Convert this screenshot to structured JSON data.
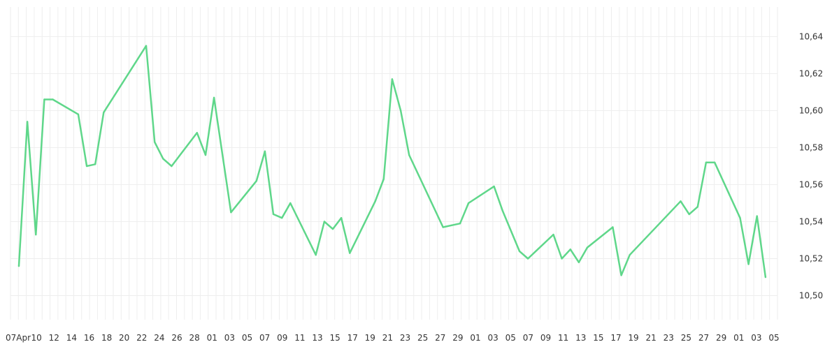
{
  "chart_data": {
    "type": "line",
    "title": "",
    "xlabel": "",
    "ylabel": "",
    "line_color": "#5fd78a",
    "grid_color": "#eeeeee",
    "grid": true,
    "ylim": [
      10.487,
      10.656
    ],
    "y_ticks": [
      "10,50",
      "10,52",
      "10,54",
      "10,56",
      "10,58",
      "10,60",
      "10,62",
      "10,64"
    ],
    "x_tick_labels": [
      "07Apr",
      "10",
      "12",
      "14",
      "16",
      "18",
      "20",
      "22",
      "24",
      "26",
      "28",
      "01",
      "03",
      "05",
      "07",
      "09",
      "11",
      "13",
      "15",
      "17",
      "19",
      "21",
      "23",
      "25",
      "27",
      "29",
      "01",
      "03",
      "05",
      "07",
      "09",
      "11",
      "13",
      "15",
      "17",
      "19",
      "21",
      "23",
      "25",
      "27",
      "29",
      "01",
      "03",
      "05"
    ],
    "x": [
      "2020-04-07",
      "2020-04-08",
      "2020-04-09",
      "2020-04-10",
      "2020-04-11",
      "2020-04-14",
      "2020-04-15",
      "2020-04-16",
      "2020-04-17",
      "2020-04-22",
      "2020-04-23",
      "2020-04-24",
      "2020-04-25",
      "2020-04-28",
      "2020-04-29",
      "2020-04-30",
      "2020-05-02",
      "2020-05-05",
      "2020-05-06",
      "2020-05-07",
      "2020-05-08",
      "2020-05-09",
      "2020-05-12",
      "2020-05-13",
      "2020-05-14",
      "2020-05-15",
      "2020-05-16",
      "2020-05-19",
      "2020-05-20",
      "2020-05-21",
      "2020-05-22",
      "2020-05-23",
      "2020-05-27",
      "2020-05-28",
      "2020-05-29",
      "2020-05-30",
      "2020-06-02",
      "2020-06-03",
      "2020-06-05",
      "2020-06-06",
      "2020-06-09",
      "2020-06-10",
      "2020-06-11",
      "2020-06-12",
      "2020-06-13",
      "2020-06-16",
      "2020-06-17",
      "2020-06-18",
      "2020-06-24",
      "2020-06-25",
      "2020-06-26",
      "2020-06-27",
      "2020-06-28",
      "2020-07-01",
      "2020-07-02",
      "2020-07-03",
      "2020-07-04"
    ],
    "series": [
      {
        "name": "",
        "values": [
          10.516,
          10.594,
          10.533,
          10.606,
          10.606,
          10.598,
          10.57,
          10.571,
          10.599,
          10.635,
          10.583,
          10.574,
          10.57,
          10.588,
          10.576,
          10.607,
          10.545,
          10.562,
          10.578,
          10.544,
          10.542,
          10.55,
          10.522,
          10.54,
          10.536,
          10.542,
          10.523,
          10.551,
          10.563,
          10.617,
          10.6,
          10.576,
          10.537,
          10.538,
          10.539,
          10.55,
          10.559,
          10.546,
          10.524,
          10.52,
          10.533,
          10.52,
          10.525,
          10.518,
          10.526,
          10.537,
          10.511,
          10.522,
          10.551,
          10.544,
          10.548,
          10.572,
          10.572,
          10.542,
          10.517,
          10.543,
          10.51
        ]
      }
    ]
  }
}
